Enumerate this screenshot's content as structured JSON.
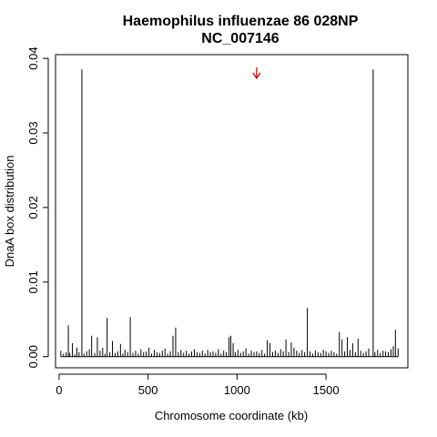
{
  "chart_data": {
    "type": "bar",
    "title": "Haemophilus influenzae 86 028NP",
    "subtitle": "NC_007146",
    "xlabel": "Chromosome coordinate (kb)",
    "ylabel": "DnaA box distribution",
    "xlim": [
      -20,
      1960
    ],
    "ylim": [
      -0.0015,
      0.0405
    ],
    "xticks": [
      "0",
      "500",
      "1000",
      "1500"
    ],
    "xtick_values": [
      0,
      500,
      1000,
      1500
    ],
    "yticks": [
      "0.00",
      "0.01",
      "0.02",
      "0.03",
      "0.04"
    ],
    "ytick_values": [
      0,
      0.01,
      0.02,
      0.03,
      0.04
    ],
    "grid": false,
    "marker": {
      "type": "arrow",
      "x": 1110,
      "color": "#cc0000"
    },
    "x": [
      10,
      25,
      40,
      52,
      60,
      75,
      88,
      100,
      112,
      128,
      140,
      155,
      170,
      183,
      200,
      215,
      230,
      245,
      258,
      270,
      285,
      300,
      315,
      330,
      345,
      358,
      370,
      385,
      400,
      415,
      430,
      445,
      460,
      475,
      490,
      505,
      520,
      535,
      550,
      565,
      580,
      595,
      610,
      625,
      640,
      655,
      670,
      685,
      700,
      715,
      730,
      745,
      760,
      775,
      790,
      805,
      820,
      835,
      850,
      865,
      880,
      895,
      910,
      925,
      940,
      955,
      965,
      978,
      990,
      1005,
      1020,
      1035,
      1050,
      1065,
      1080,
      1095,
      1110,
      1125,
      1140,
      1155,
      1170,
      1185,
      1200,
      1215,
      1230,
      1245,
      1260,
      1275,
      1290,
      1305,
      1320,
      1335,
      1350,
      1365,
      1380,
      1395,
      1410,
      1425,
      1440,
      1455,
      1470,
      1485,
      1500,
      1515,
      1530,
      1545,
      1560,
      1575,
      1590,
      1605,
      1620,
      1635,
      1650,
      1665,
      1680,
      1695,
      1710,
      1725,
      1740,
      1765,
      1775,
      1790,
      1805,
      1820,
      1835,
      1850,
      1865,
      1878,
      1890,
      1905
    ],
    "values": [
      0.0008,
      0.0004,
      0.0006,
      0.0042,
      0.0005,
      0.0018,
      0.0003,
      0.0012,
      0.0006,
      0.0385,
      0.0004,
      0.0007,
      0.001,
      0.0028,
      0.0005,
      0.0026,
      0.0008,
      0.0012,
      0.0004,
      0.0052,
      0.0006,
      0.0021,
      0.0005,
      0.0007,
      0.0017,
      0.0004,
      0.0009,
      0.0006,
      0.0053,
      0.0005,
      0.0008,
      0.0004,
      0.001,
      0.0006,
      0.0007,
      0.0012,
      0.0004,
      0.0009,
      0.0006,
      0.0005,
      0.0008,
      0.0011,
      0.0004,
      0.0007,
      0.0028,
      0.0039,
      0.0006,
      0.0009,
      0.0005,
      0.0008,
      0.0004,
      0.0007,
      0.001,
      0.0006,
      0.0005,
      0.0008,
      0.0004,
      0.0009,
      0.0006,
      0.0007,
      0.0005,
      0.001,
      0.0004,
      0.0008,
      0.0006,
      0.0026,
      0.0028,
      0.0018,
      0.0006,
      0.0009,
      0.0005,
      0.0007,
      0.0011,
      0.0004,
      0.0008,
      0.0006,
      0.0007,
      0.0005,
      0.0009,
      0.0004,
      0.0022,
      0.0018,
      0.0006,
      0.0008,
      0.0005,
      0.001,
      0.0007,
      0.0023,
      0.0006,
      0.0019,
      0.0012,
      0.0008,
      0.0005,
      0.0009,
      0.0006,
      0.0065,
      0.0007,
      0.0004,
      0.0008,
      0.0006,
      0.0005,
      0.0009,
      0.0007,
      0.0005,
      0.0008,
      0.0006,
      0.0004,
      0.0033,
      0.0023,
      0.0007,
      0.0026,
      0.0009,
      0.0018,
      0.0006,
      0.0024,
      0.0008,
      0.0005,
      0.0007,
      0.0011,
      0.0385,
      0.0006,
      0.0009,
      0.0005,
      0.0008,
      0.0007,
      0.0006,
      0.001,
      0.0014,
      0.0036,
      0.0011
    ]
  }
}
